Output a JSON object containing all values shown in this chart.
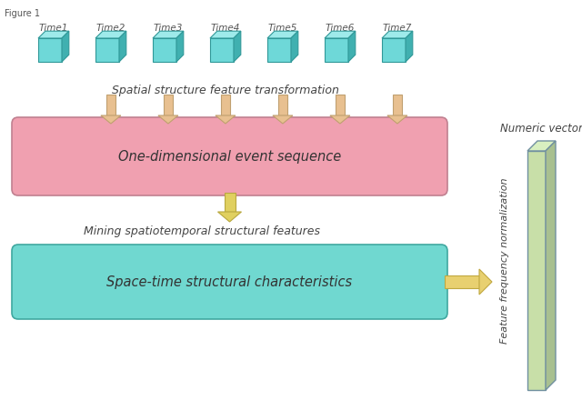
{
  "title": "Figure 1",
  "time_labels": [
    "Time1",
    "Time2",
    "Time3",
    "Time4",
    "Time5",
    "Time6",
    "Time7"
  ],
  "cube_color_face": "#6ED8D8",
  "cube_color_top": "#9EEAEA",
  "cube_color_side": "#40B0B0",
  "cube_color_edge": "#309898",
  "spatial_text": "Spatial structure feature transformation",
  "box1_text": "One-dimensional event sequence",
  "box1_color": "#F0A0B0",
  "box1_edge": "#C08090",
  "box2_text": "Space-time structural characteristics",
  "box2_color": "#70D8D0",
  "box2_edge": "#40A8A0",
  "arrow_color_down": "#E8C090",
  "arrow_color_down_edge": "#C0A070",
  "arrow_color_center": "#E0D060",
  "arrow_color_center_edge": "#B8A840",
  "arrow_color_right": "#E8D070",
  "arrow_color_right_edge": "#C0A840",
  "mining_text": "Mining spatiotemporal structural features",
  "numeric_text": "Numeric vector",
  "feature_text": "Feature frequency normalization",
  "vector_face": "#C8DFA8",
  "vector_top": "#D8EFC0",
  "vector_side": "#A8C090",
  "vector_edge": "#7090A0",
  "background": "#FFFFFF"
}
